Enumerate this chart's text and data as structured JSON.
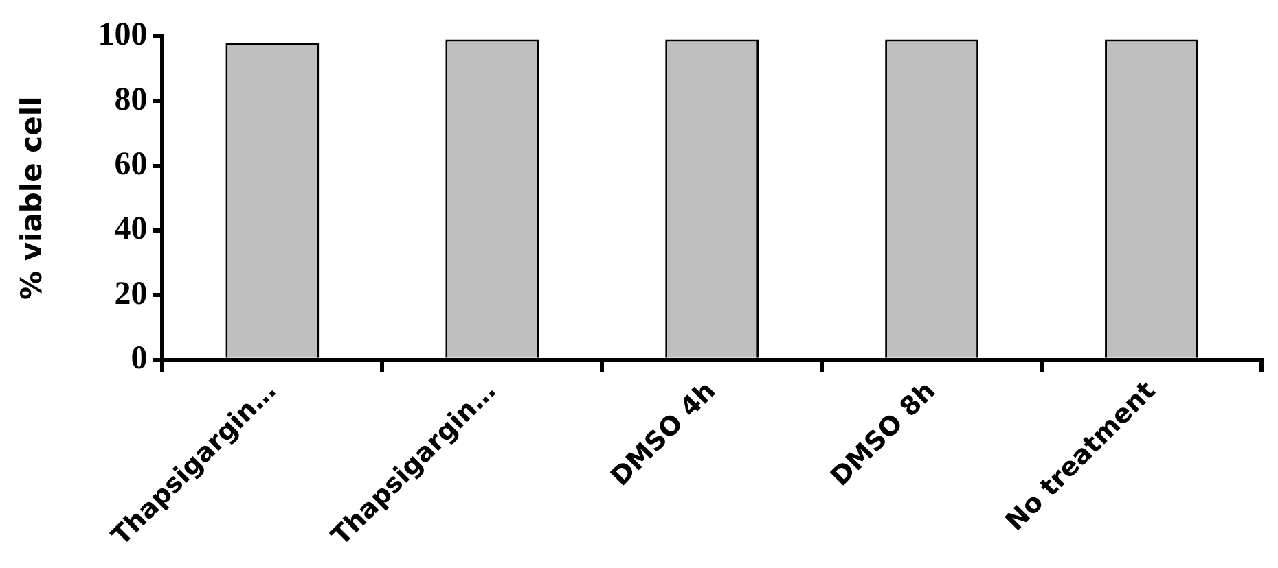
{
  "chart_data": {
    "type": "bar",
    "ylabel": "% viable cell",
    "categories": [
      "Thapsigargin…",
      "Thapsigargin…",
      "DMSO 4h",
      "DMSO 8h",
      "No treatment"
    ],
    "values": [
      98,
      99,
      99,
      99,
      99
    ],
    "color": "#bfbfbf",
    "ylim": [
      0,
      100
    ],
    "yticks": [
      0,
      20,
      40,
      60,
      80,
      100
    ],
    "grid": false,
    "legend": false
  }
}
